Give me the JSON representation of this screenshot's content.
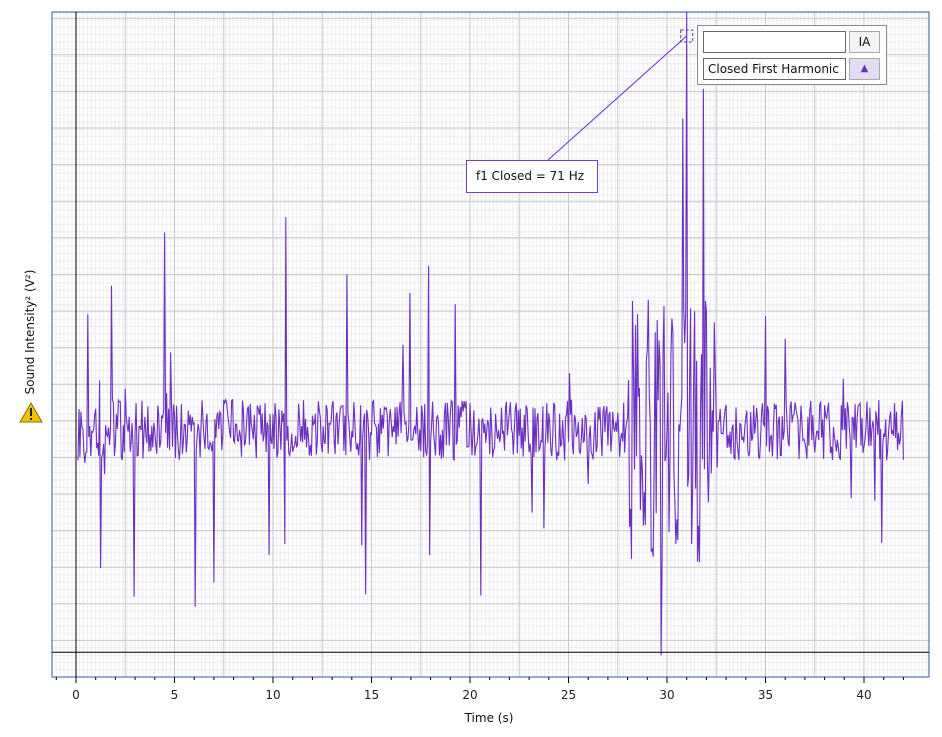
{
  "colors": {
    "series": "#6a2fc0",
    "grid_major": "#c8c8c8",
    "grid_minor": "#ececf3",
    "axis": "#000000",
    "warning": "#f2c200"
  },
  "legend": {
    "row1_label": "",
    "row1_button": "IA",
    "row2_label": "Closed First Harmonic",
    "row2_button": "▲"
  },
  "annotation": {
    "text": "f1 Closed = 71 Hz"
  },
  "warning_icon": "warning-triangle-icon",
  "chart_data": {
    "type": "line",
    "xlabel": "Time (s)",
    "ylabel": "Sound Intensity² (V²)",
    "xlim": [
      -1.2,
      42.0
    ],
    "ylim": [
      -0.0065,
      0.011
    ],
    "x_ticks": [
      0,
      5,
      10,
      15,
      20,
      25,
      30,
      35,
      40
    ],
    "x_tick_labels": [
      "0",
      "5",
      "10",
      "15",
      "20",
      "25",
      "30",
      "35",
      "40"
    ],
    "y_tick_labels_shown": false,
    "grid": true,
    "legend_position": "top-right",
    "series": [
      {
        "name": "Closed First Harmonic",
        "x_start": 0.1,
        "x_end": 42.0,
        "baseline": 0,
        "sample_interval": 0.05,
        "segments": [
          {
            "x": [
              0.1,
              28.0
            ],
            "amplitude": 0.0008,
            "spike_amplitude": 0.0048
          },
          {
            "x": [
              28.0,
              32.6
            ],
            "amplitude": 0.0035,
            "spike_amplitude": 0.0095
          },
          {
            "x": [
              32.6,
              42.0
            ],
            "amplitude": 0.0008,
            "spike_amplitude": 0.003
          }
        ],
        "peaks": [
          {
            "x": 4.5,
            "y": 0.0052
          },
          {
            "x": 10.6,
            "y": 0.0056
          },
          {
            "x": 10.6,
            "y": -0.003
          },
          {
            "x": 30.8,
            "y": 0.0082
          },
          {
            "x": 31.0,
            "y": 0.0139
          },
          {
            "x": 31.2,
            "y": -0.003
          }
        ]
      }
    ],
    "marker": {
      "x": 31.0,
      "y": 0.0139
    }
  }
}
